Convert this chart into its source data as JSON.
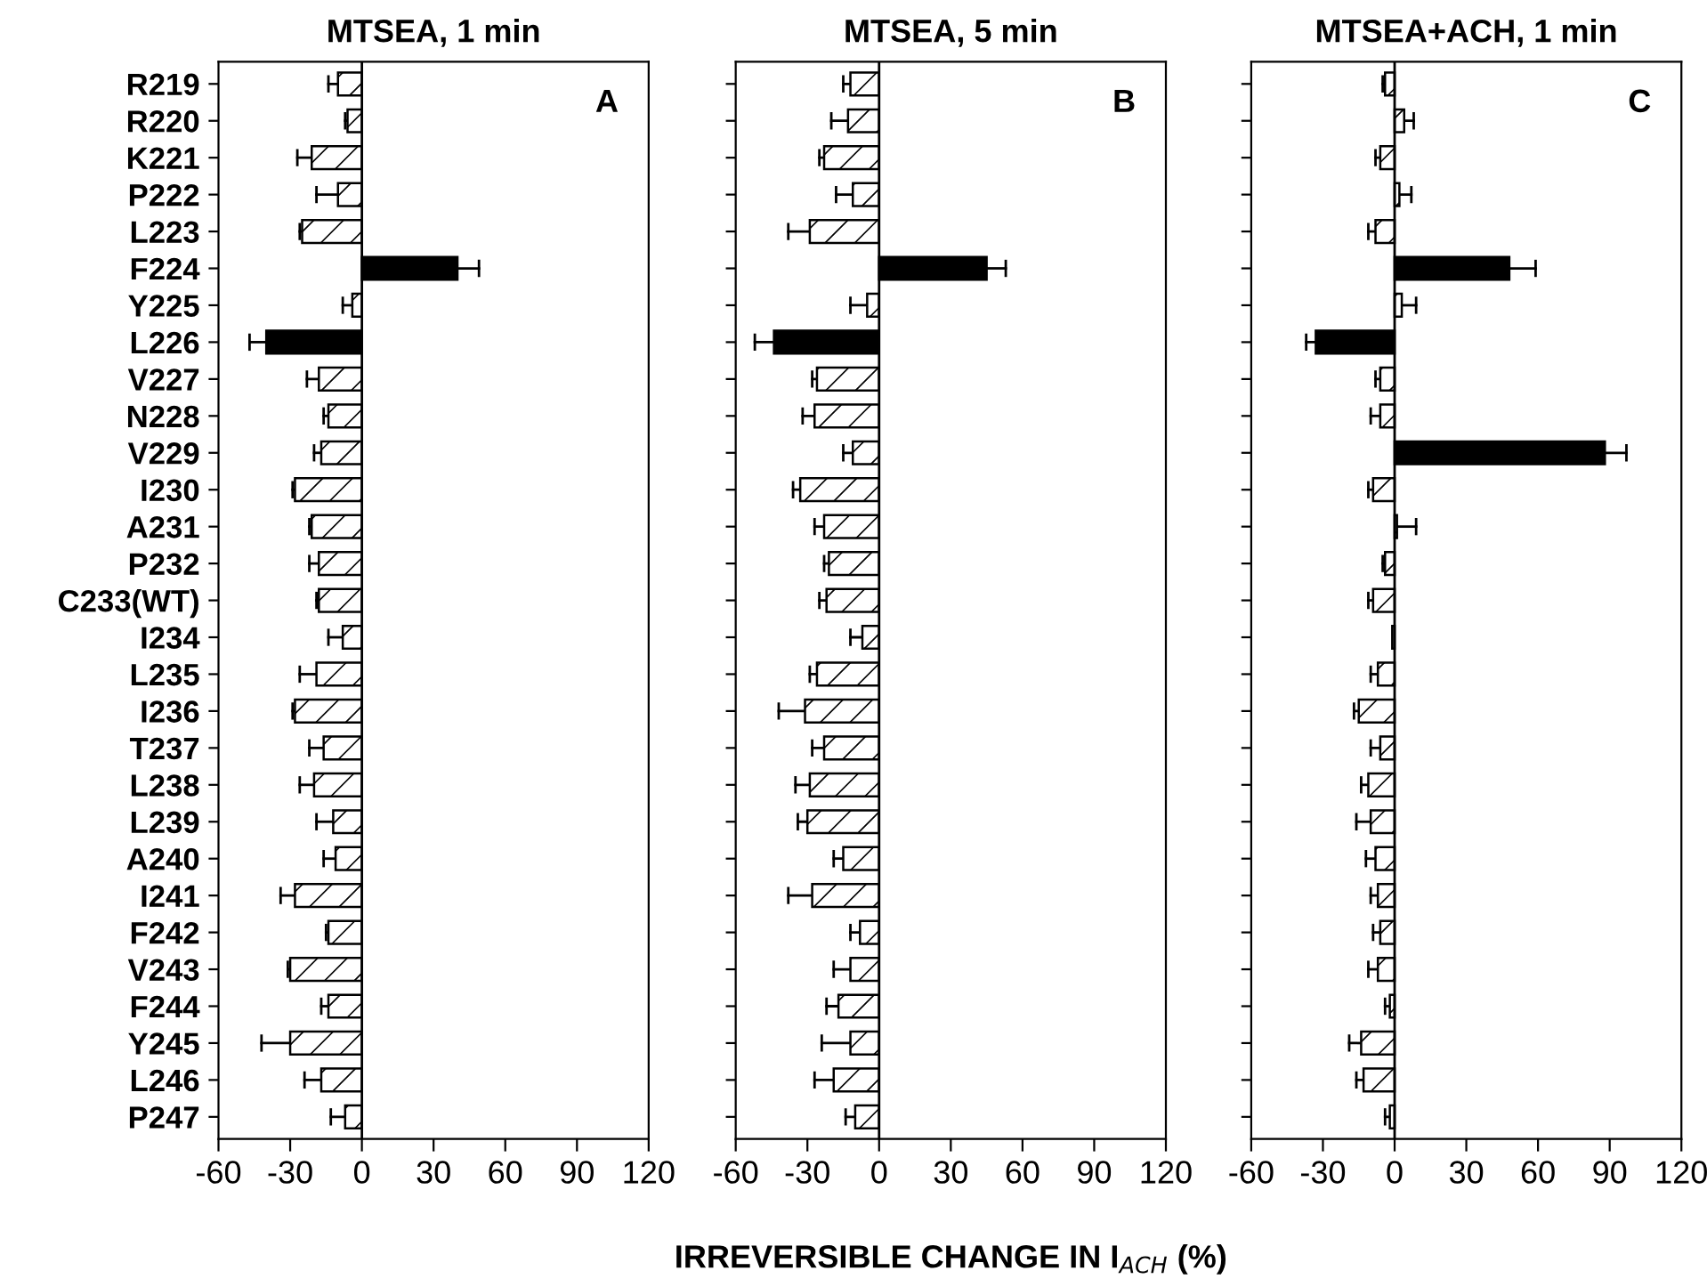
{
  "chart_data": [
    {
      "type": "bar",
      "orientation": "horizontal",
      "title": "MTSEA, 1 min",
      "annotations": [
        "A"
      ],
      "categories": [
        "R219",
        "R220",
        "K221",
        "P222",
        "L223",
        "F224",
        "Y225",
        "L226",
        "V227",
        "N228",
        "V229",
        "I230",
        "A231",
        "P232",
        "C233(WT)",
        "I234",
        "L235",
        "I236",
        "T237",
        "L238",
        "L239",
        "A240",
        "I241",
        "F242",
        "V243",
        "F244",
        "Y245",
        "L246",
        "P247"
      ],
      "values": [
        -10,
        -6,
        -21,
        -10,
        -25,
        40,
        -4,
        -40,
        -18,
        -14,
        -17,
        -28,
        -21,
        -18,
        -18,
        -8,
        -19,
        -28,
        -16,
        -20,
        -12,
        -11,
        -28,
        -14,
        -30,
        -14,
        -30,
        -17,
        -7
      ],
      "errors": [
        [
          -14,
          -10
        ],
        [
          -7,
          -6
        ],
        [
          -27,
          -21
        ],
        [
          -19,
          -10
        ],
        [
          -26,
          -25
        ],
        [
          40,
          49
        ],
        [
          -8,
          -4
        ],
        [
          -47,
          -40
        ],
        [
          -23,
          -18
        ],
        [
          -16,
          -14
        ],
        [
          -20,
          -17
        ],
        [
          -29,
          -28
        ],
        [
          -22,
          -21
        ],
        [
          -22,
          -18
        ],
        [
          -19,
          -18
        ],
        [
          -14,
          -8
        ],
        [
          -26,
          -19
        ],
        [
          -29,
          -28
        ],
        [
          -22,
          -16
        ],
        [
          -26,
          -20
        ],
        [
          -19,
          -12
        ],
        [
          -16,
          -11
        ],
        [
          -34,
          -28
        ],
        [
          -15,
          -14
        ],
        [
          -31,
          -30
        ],
        [
          -17,
          -14
        ],
        [
          -42,
          -30
        ],
        [
          -24,
          -17
        ],
        [
          -13,
          -7
        ]
      ],
      "colors": [
        "#ffffff",
        "#ffffff",
        "#ffffff",
        "#ffffff",
        "#ffffff",
        "#000000",
        "#ffffff",
        "#000000",
        "#ffffff",
        "#ffffff",
        "#ffffff",
        "#ffffff",
        "#ffffff",
        "#ffffff",
        "#ffffff",
        "#ffffff",
        "#ffffff",
        "#ffffff",
        "#ffffff",
        "#ffffff",
        "#ffffff",
        "#ffffff",
        "#ffffff",
        "#ffffff",
        "#ffffff",
        "#ffffff",
        "#ffffff",
        "#ffffff",
        "#ffffff"
      ],
      "xlim": [
        -60,
        120
      ],
      "xticks": [
        -60,
        -30,
        0,
        30,
        60,
        90,
        120
      ],
      "ref_lines": [
        {
          "axis": "x",
          "value": 0
        }
      ],
      "grid": false,
      "legend": false
    },
    {
      "type": "bar",
      "orientation": "horizontal",
      "title": "MTSEA, 5 min",
      "annotations": [
        "B"
      ],
      "xlabel": "IRREVERSIBLE CHANGE IN I$_{ACH}$ (%)",
      "categories": [
        null,
        null,
        null,
        null,
        null,
        null,
        null,
        null,
        null,
        null,
        null,
        null,
        null,
        null,
        null,
        null,
        null,
        null,
        null,
        null,
        null,
        null,
        null,
        null,
        null,
        null,
        null,
        null,
        null
      ],
      "values": [
        -12,
        -13,
        -23,
        -11,
        -29,
        45,
        -5,
        -44,
        -26,
        -27,
        -11,
        -33,
        -23,
        -21,
        -22,
        -7,
        -26,
        -31,
        -23,
        -29,
        -30,
        -15,
        -28,
        -8,
        -12,
        -17,
        -12,
        -19,
        -10
      ],
      "errors": [
        [
          -15,
          -12
        ],
        [
          -20,
          -13
        ],
        [
          -25,
          -23
        ],
        [
          -18,
          -11
        ],
        [
          -38,
          -29
        ],
        [
          45,
          53
        ],
        [
          -12,
          -5
        ],
        [
          -52,
          -44
        ],
        [
          -28,
          -26
        ],
        [
          -32,
          -27
        ],
        [
          -15,
          -11
        ],
        [
          -36,
          -33
        ],
        [
          -27,
          -23
        ],
        [
          -23,
          -21
        ],
        [
          -25,
          -22
        ],
        [
          -12,
          -7
        ],
        [
          -29,
          -26
        ],
        [
          -42,
          -31
        ],
        [
          -28,
          -23
        ],
        [
          -35,
          -29
        ],
        [
          -34,
          -30
        ],
        [
          -19,
          -15
        ],
        [
          -38,
          -28
        ],
        [
          -12,
          -8
        ],
        [
          -19,
          -12
        ],
        [
          -22,
          -17
        ],
        [
          -24,
          -12
        ],
        [
          -27,
          -19
        ],
        [
          -14,
          -10
        ]
      ],
      "colors": [
        "#ffffff",
        "#ffffff",
        "#ffffff",
        "#ffffff",
        "#ffffff",
        "#000000",
        "#ffffff",
        "#000000",
        "#ffffff",
        "#ffffff",
        "#ffffff",
        "#ffffff",
        "#ffffff",
        "#ffffff",
        "#ffffff",
        "#ffffff",
        "#ffffff",
        "#ffffff",
        "#ffffff",
        "#ffffff",
        "#ffffff",
        "#ffffff",
        "#ffffff",
        "#ffffff",
        "#ffffff",
        "#ffffff",
        "#ffffff",
        "#ffffff",
        "#ffffff"
      ],
      "xlim": [
        -60,
        120
      ],
      "xticks": [
        -60,
        -30,
        0,
        30,
        60,
        90,
        120
      ],
      "ref_lines": [
        {
          "axis": "x",
          "value": 0
        }
      ],
      "grid": false,
      "legend": false
    },
    {
      "type": "bar",
      "orientation": "horizontal",
      "title": "MTSEA+ACH, 1 min",
      "annotations": [
        "C"
      ],
      "categories": [
        null,
        null,
        null,
        null,
        null,
        null,
        null,
        null,
        null,
        null,
        null,
        null,
        null,
        null,
        null,
        null,
        null,
        null,
        null,
        null,
        null,
        null,
        null,
        null,
        null,
        null,
        null,
        null,
        null
      ],
      "values": [
        -4,
        4,
        -6,
        2,
        -8,
        48,
        3,
        -33,
        -6,
        -6,
        88,
        -9,
        1,
        -4,
        -9,
        -1,
        -7,
        -15,
        -6,
        -11,
        -10,
        -8,
        -7,
        -6,
        -7,
        -2,
        -14,
        -13,
        -2
      ],
      "errors": [
        [
          -5,
          -4
        ],
        [
          4,
          8
        ],
        [
          -8,
          -6
        ],
        [
          2,
          7
        ],
        [
          -11,
          -8
        ],
        [
          48,
          59
        ],
        [
          3,
          9
        ],
        [
          -37,
          -33
        ],
        [
          -8,
          -6
        ],
        [
          -10,
          -6
        ],
        [
          88,
          97
        ],
        [
          -11,
          -9
        ],
        [
          1,
          9
        ],
        [
          -5,
          -4
        ],
        [
          -11,
          -9
        ],
        null,
        [
          -10,
          -7
        ],
        [
          -17,
          -15
        ],
        [
          -10,
          -6
        ],
        [
          -14,
          -11
        ],
        [
          -16,
          -10
        ],
        [
          -12,
          -8
        ],
        [
          -10,
          -7
        ],
        [
          -9,
          -6
        ],
        [
          -11,
          -7
        ],
        [
          -4,
          -2
        ],
        [
          -19,
          -14
        ],
        [
          -16,
          -13
        ],
        [
          -4,
          -2
        ]
      ],
      "colors": [
        "#ffffff",
        "#ffffff",
        "#ffffff",
        "#ffffff",
        "#ffffff",
        "#000000",
        "#ffffff",
        "#000000",
        "#ffffff",
        "#ffffff",
        "#000000",
        "#ffffff",
        "#ffffff",
        "#ffffff",
        "#ffffff",
        "#ffffff",
        "#ffffff",
        "#ffffff",
        "#ffffff",
        "#ffffff",
        "#ffffff",
        "#ffffff",
        "#ffffff",
        "#ffffff",
        "#ffffff",
        "#ffffff",
        "#ffffff",
        "#ffffff",
        "#ffffff"
      ],
      "xlim": [
        -60,
        120
      ],
      "xticks": [
        -60,
        -30,
        0,
        30,
        60,
        90,
        120
      ],
      "ref_lines": [
        {
          "axis": "x",
          "value": 0
        }
      ],
      "grid": false,
      "legend": false
    }
  ]
}
